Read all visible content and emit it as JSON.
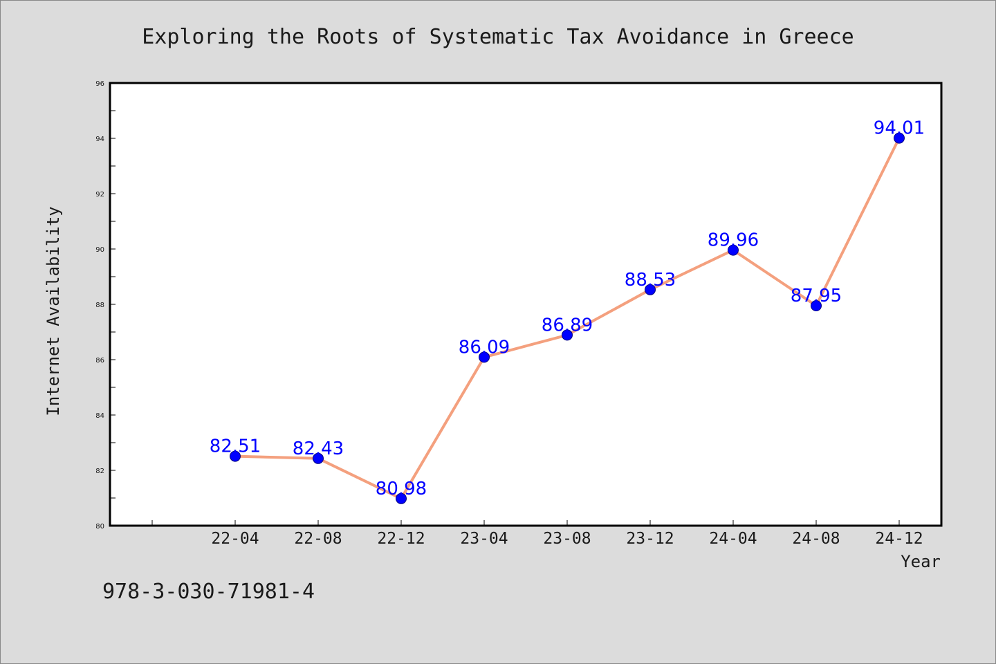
{
  "chart_data": {
    "type": "line",
    "title": "Exploring the Roots of Systematic Tax Avoidance in Greece",
    "xlabel": "Year",
    "ylabel": "Internet Availability",
    "categories": [
      "22-04",
      "22-08",
      "22-12",
      "23-04",
      "23-08",
      "23-12",
      "24-04",
      "24-08",
      "24-12"
    ],
    "values": [
      82.51,
      82.43,
      80.98,
      86.09,
      86.89,
      88.53,
      89.96,
      87.95,
      94.01
    ],
    "data_labels": [
      "82.51",
      "82.43",
      "80.98",
      "86.09",
      "86.89",
      "88.53",
      "89.96",
      "87.95",
      "94.01"
    ],
    "ylim": [
      80,
      96
    ],
    "yticks": [
      "80",
      "82",
      "84",
      "86",
      "88",
      "90",
      "92",
      "94",
      "96"
    ],
    "grid": false,
    "colors": {
      "line": "#f4a07e",
      "marker": "#0000ff",
      "label": "#0000ff",
      "background": "#dcdcdc",
      "plot_area": "#ffffff"
    }
  },
  "footer": {
    "isbn": "978-3-030-71981-4"
  }
}
